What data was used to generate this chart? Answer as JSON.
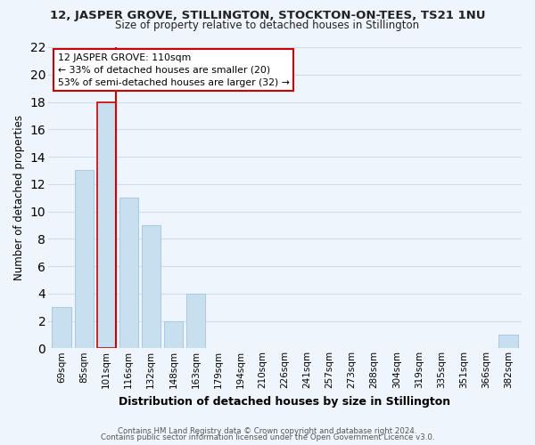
{
  "title_line1": "12, JASPER GROVE, STILLINGTON, STOCKTON-ON-TEES, TS21 1NU",
  "title_line2": "Size of property relative to detached houses in Stillington",
  "xlabel": "Distribution of detached houses by size in Stillington",
  "ylabel": "Number of detached properties",
  "footer_line1": "Contains HM Land Registry data © Crown copyright and database right 2024.",
  "footer_line2": "Contains public sector information licensed under the Open Government Licence v3.0.",
  "bar_labels": [
    "69sqm",
    "85sqm",
    "101sqm",
    "116sqm",
    "132sqm",
    "148sqm",
    "163sqm",
    "179sqm",
    "194sqm",
    "210sqm",
    "226sqm",
    "241sqm",
    "257sqm",
    "273sqm",
    "288sqm",
    "304sqm",
    "319sqm",
    "335sqm",
    "351sqm",
    "366sqm",
    "382sqm"
  ],
  "bar_values": [
    3,
    13,
    18,
    11,
    9,
    2,
    4,
    0,
    0,
    0,
    0,
    0,
    0,
    0,
    0,
    0,
    0,
    0,
    0,
    0,
    1
  ],
  "bar_color": "#c8dff0",
  "bar_edge_color": "#a8c8e8",
  "highlight_bar_index": 2,
  "highlight_bar_edge_color": "#cc0000",
  "ylim": [
    0,
    22
  ],
  "yticks": [
    0,
    2,
    4,
    6,
    8,
    10,
    12,
    14,
    16,
    18,
    20,
    22
  ],
  "annotation_title": "12 JASPER GROVE: 110sqm",
  "annotation_line1": "← 33% of detached houses are smaller (20)",
  "annotation_line2": "53% of semi-detached houses are larger (32) →",
  "annotation_box_facecolor": "#ffffff",
  "annotation_box_edgecolor": "#cc0000",
  "red_line_color": "#cc0000",
  "grid_color": "#ccdded",
  "background_color": "#eef5fc"
}
